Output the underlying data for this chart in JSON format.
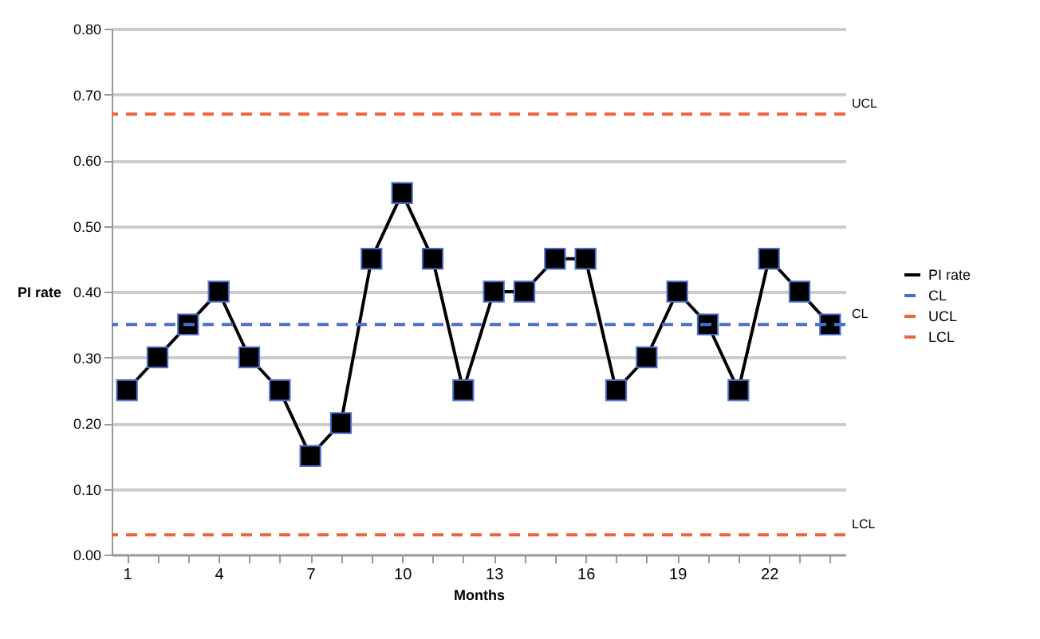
{
  "chart_data": {
    "type": "line",
    "xlabel": "Months",
    "ylabel": "PI rate",
    "categories": [
      "1",
      null,
      null,
      "4",
      null,
      null,
      "7",
      null,
      null,
      "10",
      null,
      null,
      "13",
      null,
      null,
      "16",
      null,
      null,
      "19",
      null,
      null,
      "22",
      null,
      null
    ],
    "series": [
      {
        "name": "PI rate",
        "color": "#000000",
        "values": [
          0.25,
          0.3,
          0.35,
          0.4,
          0.3,
          0.25,
          0.15,
          0.2,
          0.45,
          0.55,
          0.45,
          0.25,
          0.4,
          0.4,
          0.45,
          0.45,
          0.25,
          0.3,
          0.4,
          0.35,
          0.25,
          0.45,
          0.4,
          0.35
        ]
      }
    ],
    "marker": "square",
    "line_style": "solid",
    "ylim": [
      0,
      0.8
    ],
    "yticks": [
      {
        "value": 0,
        "label": "0.00"
      },
      {
        "value": 0.1,
        "label": "0.10"
      },
      {
        "value": 0.2,
        "label": "0.20"
      },
      {
        "value": 0.3,
        "label": "0.30"
      },
      {
        "value": 0.4,
        "label": "0.40"
      },
      {
        "value": 0.5,
        "label": "0.50"
      },
      {
        "value": 0.6,
        "label": "0.60"
      },
      {
        "value": 0.7,
        "label": "0.70"
      },
      {
        "value": 0.8,
        "label": "0.80"
      }
    ],
    "ref_lines": [
      {
        "axis": "y",
        "value": 0.35,
        "label": "CL",
        "color": "#4a6fd0",
        "line_style": "dashed"
      },
      {
        "axis": "y",
        "value": 0.67,
        "label": "UCL",
        "color": "#f0643c",
        "line_style": "dashed"
      },
      {
        "axis": "y",
        "value": 0.03,
        "label": "LCL",
        "color": "#f0643c",
        "line_style": "dashed"
      }
    ],
    "grid": "y",
    "legend": "right"
  }
}
